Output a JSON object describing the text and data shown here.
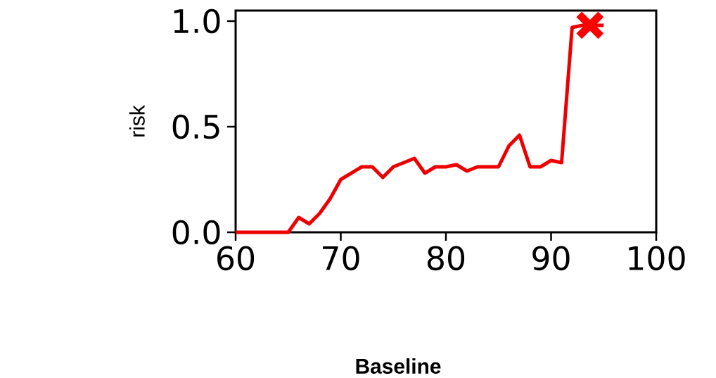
{
  "chart_data": {
    "type": "line",
    "xlabel": "Baseline",
    "ylabel": "risk",
    "x": [
      60,
      61,
      62,
      63,
      64,
      65,
      66,
      67,
      68,
      69,
      70,
      71,
      72,
      73,
      74,
      75,
      76,
      77,
      78,
      79,
      80,
      81,
      82,
      83,
      84,
      85,
      86,
      87,
      88,
      89,
      90,
      91,
      92,
      93,
      94,
      95
    ],
    "series": [
      {
        "color": "#ee0000",
        "values": [
          0,
          0,
          0,
          0,
          0,
          0,
          0.07,
          0.04,
          0.09,
          0.16,
          0.25,
          0.28,
          0.31,
          0.31,
          0.26,
          0.31,
          0.33,
          0.35,
          0.28,
          0.31,
          0.31,
          0.32,
          0.29,
          0.31,
          0.31,
          0.31,
          0.41,
          0.46,
          0.31,
          0.31,
          0.34,
          0.33,
          0.97,
          0.98,
          0.98,
          0.98
        ]
      },
      {
        "type": "scatter",
        "marker": "cross",
        "color": "#ff0000",
        "x": [
          93.7
        ],
        "values": [
          0.98
        ]
      }
    ],
    "xlim": [
      60,
      100
    ],
    "ylim": [
      0,
      1.05
    ],
    "xticks": [
      60,
      70,
      80,
      90,
      100
    ],
    "yticks": [
      {
        "value": 0,
        "label": "0.0"
      },
      {
        "value": 0.5,
        "label": "0.5"
      },
      {
        "value": 1,
        "label": "1.0"
      }
    ],
    "grid": false
  }
}
